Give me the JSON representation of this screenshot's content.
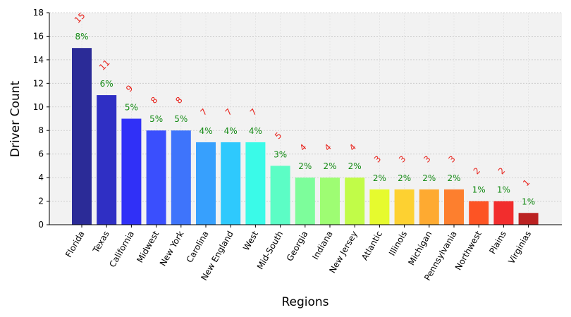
{
  "chart_data": {
    "type": "bar",
    "xlabel": "Regions",
    "ylabel": "Driver Count",
    "ylim": [
      0,
      18
    ],
    "yticks": [
      0,
      2,
      4,
      6,
      8,
      10,
      12,
      14,
      16,
      18
    ],
    "grid": true,
    "categories": [
      "Florida",
      "Texas",
      "California",
      "Midwest",
      "New York",
      "Carolina",
      "New England",
      "West",
      "Mid-South",
      "Georgia",
      "Indiana",
      "New Jersey",
      "Atlantic",
      "Illinois",
      "Michigan",
      "Pennsylvania",
      "Northwest",
      "Plains",
      "Virginias"
    ],
    "values": [
      15,
      11,
      9,
      8,
      8,
      7,
      7,
      7,
      5,
      4,
      4,
      4,
      3,
      3,
      3,
      3,
      2,
      2,
      1
    ],
    "percent_labels": [
      "8%",
      "6%",
      "5%",
      "5%",
      "5%",
      "4%",
      "4%",
      "4%",
      "3%",
      "2%",
      "2%",
      "2%",
      "2%",
      "2%",
      "2%",
      "2%",
      "1%",
      "1%",
      "1%"
    ],
    "colors": [
      "#2b2b97",
      "#2f2fc4",
      "#3030f7",
      "#3a4ffd",
      "#3e74fb",
      "#37a0fd",
      "#2ec9fd",
      "#3afae8",
      "#5cfdc5",
      "#7dfd9b",
      "#9efd73",
      "#c1fc48",
      "#e6fa2e",
      "#fdd131",
      "#feaa31",
      "#fd7f2e",
      "#fd5424",
      "#f22d2d",
      "#bb2222"
    ],
    "count_label_color": "#e8231c",
    "percent_label_color": "#138a13"
  }
}
